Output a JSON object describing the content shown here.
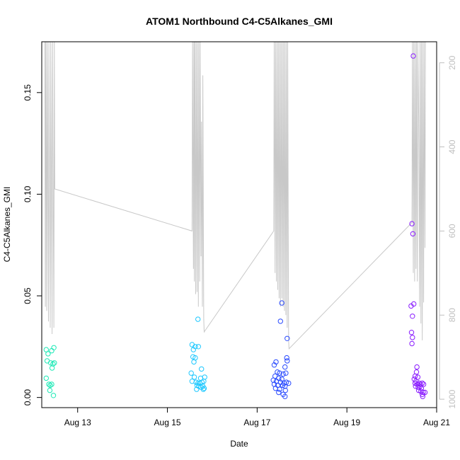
{
  "chart_data": {
    "type": "scatter",
    "title": "ATOM1 Northbound C4-C5Alkanes_GMI",
    "xlabel": "Date",
    "ylabel": "C4-C5Alkanes_GMI",
    "x_range_days": [
      12.2,
      21.0
    ],
    "y_range": [
      -0.005,
      0.175
    ],
    "x_ticks": [
      {
        "value": 13,
        "label": "Aug 13"
      },
      {
        "value": 15,
        "label": "Aug 15"
      },
      {
        "value": 17,
        "label": "Aug 17"
      },
      {
        "value": 19,
        "label": "Aug 19"
      },
      {
        "value": 21,
        "label": "Aug 21"
      }
    ],
    "y_ticks": [
      {
        "value": 0.0,
        "label": "0.00"
      },
      {
        "value": 0.05,
        "label": "0.05"
      },
      {
        "value": 0.1,
        "label": "0.10"
      },
      {
        "value": 0.15,
        "label": "0.15"
      }
    ],
    "right_axis": {
      "range": [
        1020,
        150
      ],
      "ticks": [
        {
          "value": 200,
          "label": "200"
        },
        {
          "value": 400,
          "label": "400"
        },
        {
          "value": 600,
          "label": "600"
        },
        {
          "value": 800,
          "label": "800"
        },
        {
          "value": 1000,
          "label": "1000"
        }
      ],
      "color": "#bfbfbf"
    },
    "colors": {
      "pressure_line": "#c8c8c8",
      "cyan_green": "#1de9b6",
      "sky": "#1ec8ff",
      "blue": "#2a4bff",
      "violet": "#8a1cff"
    },
    "points": [
      {
        "x": 12.3,
        "y": 0.0235,
        "c": "#1de9b6"
      },
      {
        "x": 12.34,
        "y": 0.0215,
        "c": "#1de9b6"
      },
      {
        "x": 12.42,
        "y": 0.023,
        "c": "#1de9b6"
      },
      {
        "x": 12.47,
        "y": 0.0245,
        "c": "#1de9b6"
      },
      {
        "x": 12.32,
        "y": 0.018,
        "c": "#1de9b6"
      },
      {
        "x": 12.4,
        "y": 0.017,
        "c": "#1de9b6"
      },
      {
        "x": 12.45,
        "y": 0.0165,
        "c": "#1de9b6"
      },
      {
        "x": 12.48,
        "y": 0.017,
        "c": "#1de9b6"
      },
      {
        "x": 12.43,
        "y": 0.0145,
        "c": "#1de9b6"
      },
      {
        "x": 12.3,
        "y": 0.0095,
        "c": "#1de9b6"
      },
      {
        "x": 12.36,
        "y": 0.0065,
        "c": "#1de9b6"
      },
      {
        "x": 12.39,
        "y": 0.006,
        "c": "#1de9b6"
      },
      {
        "x": 12.42,
        "y": 0.0065,
        "c": "#1de9b6"
      },
      {
        "x": 12.38,
        "y": 0.0035,
        "c": "#1de9b6"
      },
      {
        "x": 12.46,
        "y": 0.001,
        "c": "#1de9b6"
      },
      {
        "x": 15.68,
        "y": 0.0385,
        "c": "#1ec8ff"
      },
      {
        "x": 15.55,
        "y": 0.026,
        "c": "#1ec8ff"
      },
      {
        "x": 15.62,
        "y": 0.025,
        "c": "#1ec8ff"
      },
      {
        "x": 15.69,
        "y": 0.025,
        "c": "#1ec8ff"
      },
      {
        "x": 15.58,
        "y": 0.0235,
        "c": "#1ec8ff"
      },
      {
        "x": 15.57,
        "y": 0.02,
        "c": "#1ec8ff"
      },
      {
        "x": 15.62,
        "y": 0.0195,
        "c": "#1ec8ff"
      },
      {
        "x": 15.59,
        "y": 0.0175,
        "c": "#1ec8ff"
      },
      {
        "x": 15.76,
        "y": 0.014,
        "c": "#1ec8ff"
      },
      {
        "x": 15.53,
        "y": 0.012,
        "c": "#1ec8ff"
      },
      {
        "x": 15.6,
        "y": 0.01,
        "c": "#1ec8ff"
      },
      {
        "x": 15.74,
        "y": 0.0095,
        "c": "#1ec8ff"
      },
      {
        "x": 15.83,
        "y": 0.01,
        "c": "#1ec8ff"
      },
      {
        "x": 15.55,
        "y": 0.008,
        "c": "#1ec8ff"
      },
      {
        "x": 15.64,
        "y": 0.0075,
        "c": "#1ec8ff"
      },
      {
        "x": 15.68,
        "y": 0.007,
        "c": "#1ec8ff"
      },
      {
        "x": 15.72,
        "y": 0.007,
        "c": "#1ec8ff"
      },
      {
        "x": 15.77,
        "y": 0.0075,
        "c": "#1ec8ff"
      },
      {
        "x": 15.81,
        "y": 0.008,
        "c": "#1ec8ff"
      },
      {
        "x": 15.66,
        "y": 0.006,
        "c": "#1ec8ff"
      },
      {
        "x": 15.7,
        "y": 0.0055,
        "c": "#1ec8ff"
      },
      {
        "x": 15.75,
        "y": 0.005,
        "c": "#1ec8ff"
      },
      {
        "x": 15.79,
        "y": 0.0055,
        "c": "#1ec8ff"
      },
      {
        "x": 15.82,
        "y": 0.0045,
        "c": "#1ec8ff"
      },
      {
        "x": 15.65,
        "y": 0.004,
        "c": "#1ec8ff"
      },
      {
        "x": 15.8,
        "y": 0.004,
        "c": "#1ec8ff"
      },
      {
        "x": 17.55,
        "y": 0.0465,
        "c": "#2a4bff"
      },
      {
        "x": 17.52,
        "y": 0.0375,
        "c": "#2a4bff"
      },
      {
        "x": 17.67,
        "y": 0.029,
        "c": "#2a4bff"
      },
      {
        "x": 17.66,
        "y": 0.0195,
        "c": "#2a4bff"
      },
      {
        "x": 17.67,
        "y": 0.018,
        "c": "#2a4bff"
      },
      {
        "x": 17.42,
        "y": 0.0175,
        "c": "#2a4bff"
      },
      {
        "x": 17.38,
        "y": 0.016,
        "c": "#2a4bff"
      },
      {
        "x": 17.62,
        "y": 0.015,
        "c": "#2a4bff"
      },
      {
        "x": 17.45,
        "y": 0.0125,
        "c": "#2a4bff"
      },
      {
        "x": 17.5,
        "y": 0.012,
        "c": "#2a4bff"
      },
      {
        "x": 17.58,
        "y": 0.0115,
        "c": "#2a4bff"
      },
      {
        "x": 17.64,
        "y": 0.012,
        "c": "#2a4bff"
      },
      {
        "x": 17.4,
        "y": 0.0105,
        "c": "#2a4bff"
      },
      {
        "x": 17.48,
        "y": 0.0095,
        "c": "#2a4bff"
      },
      {
        "x": 17.55,
        "y": 0.009,
        "c": "#2a4bff"
      },
      {
        "x": 17.36,
        "y": 0.0085,
        "c": "#2a4bff"
      },
      {
        "x": 17.43,
        "y": 0.008,
        "c": "#2a4bff"
      },
      {
        "x": 17.52,
        "y": 0.0075,
        "c": "#2a4bff"
      },
      {
        "x": 17.6,
        "y": 0.007,
        "c": "#2a4bff"
      },
      {
        "x": 17.65,
        "y": 0.0075,
        "c": "#2a4bff"
      },
      {
        "x": 17.7,
        "y": 0.007,
        "c": "#2a4bff"
      },
      {
        "x": 17.38,
        "y": 0.0065,
        "c": "#2a4bff"
      },
      {
        "x": 17.46,
        "y": 0.006,
        "c": "#2a4bff"
      },
      {
        "x": 17.57,
        "y": 0.006,
        "c": "#2a4bff"
      },
      {
        "x": 17.62,
        "y": 0.0055,
        "c": "#2a4bff"
      },
      {
        "x": 17.41,
        "y": 0.0045,
        "c": "#2a4bff"
      },
      {
        "x": 17.5,
        "y": 0.004,
        "c": "#2a4bff"
      },
      {
        "x": 17.63,
        "y": 0.0035,
        "c": "#2a4bff"
      },
      {
        "x": 17.48,
        "y": 0.0025,
        "c": "#2a4bff"
      },
      {
        "x": 17.58,
        "y": 0.0015,
        "c": "#2a4bff"
      },
      {
        "x": 17.62,
        "y": 0.0005,
        "c": "#2a4bff"
      },
      {
        "x": 20.48,
        "y": 0.168,
        "c": "#8a1cff"
      },
      {
        "x": 20.45,
        "y": 0.0855,
        "c": "#8a1cff"
      },
      {
        "x": 20.47,
        "y": 0.0805,
        "c": "#8a1cff"
      },
      {
        "x": 20.49,
        "y": 0.046,
        "c": "#8a1cff"
      },
      {
        "x": 20.43,
        "y": 0.045,
        "c": "#8a1cff"
      },
      {
        "x": 20.46,
        "y": 0.04,
        "c": "#8a1cff"
      },
      {
        "x": 20.44,
        "y": 0.032,
        "c": "#8a1cff"
      },
      {
        "x": 20.46,
        "y": 0.0295,
        "c": "#8a1cff"
      },
      {
        "x": 20.45,
        "y": 0.0265,
        "c": "#8a1cff"
      },
      {
        "x": 20.56,
        "y": 0.015,
        "c": "#8a1cff"
      },
      {
        "x": 20.55,
        "y": 0.0125,
        "c": "#8a1cff"
      },
      {
        "x": 20.52,
        "y": 0.0105,
        "c": "#8a1cff"
      },
      {
        "x": 20.58,
        "y": 0.01,
        "c": "#8a1cff"
      },
      {
        "x": 20.5,
        "y": 0.009,
        "c": "#8a1cff"
      },
      {
        "x": 20.54,
        "y": 0.008,
        "c": "#8a1cff"
      },
      {
        "x": 20.52,
        "y": 0.007,
        "c": "#8a1cff"
      },
      {
        "x": 20.57,
        "y": 0.0065,
        "c": "#8a1cff"
      },
      {
        "x": 20.61,
        "y": 0.007,
        "c": "#8a1cff"
      },
      {
        "x": 20.64,
        "y": 0.0065,
        "c": "#8a1cff"
      },
      {
        "x": 20.68,
        "y": 0.007,
        "c": "#8a1cff"
      },
      {
        "x": 20.71,
        "y": 0.0065,
        "c": "#8a1cff"
      },
      {
        "x": 20.53,
        "y": 0.0055,
        "c": "#8a1cff"
      },
      {
        "x": 20.59,
        "y": 0.005,
        "c": "#8a1cff"
      },
      {
        "x": 20.63,
        "y": 0.0055,
        "c": "#8a1cff"
      },
      {
        "x": 20.66,
        "y": 0.0045,
        "c": "#8a1cff"
      },
      {
        "x": 20.6,
        "y": 0.0035,
        "c": "#8a1cff"
      },
      {
        "x": 20.65,
        "y": 0.003,
        "c": "#8a1cff"
      },
      {
        "x": 20.7,
        "y": 0.0025,
        "c": "#8a1cff"
      },
      {
        "x": 20.74,
        "y": 0.0025,
        "c": "#8a1cff"
      },
      {
        "x": 20.68,
        "y": 0.0015,
        "c": "#8a1cff"
      },
      {
        "x": 20.69,
        "y": 0.0005,
        "c": "#8a1cff"
      }
    ],
    "pressure_trace": [
      [
        12.27,
        150
      ],
      [
        12.28,
        780
      ],
      [
        12.29,
        150
      ],
      [
        12.31,
        790
      ],
      [
        12.32,
        150
      ],
      [
        12.35,
        815
      ],
      [
        12.36,
        150
      ],
      [
        12.39,
        830
      ],
      [
        12.4,
        150
      ],
      [
        12.43,
        845
      ],
      [
        12.44,
        150
      ],
      [
        12.47,
        830
      ],
      [
        12.48,
        150
      ],
      [
        12.49,
        500
      ],
      [
        15.55,
        600
      ],
      [
        15.56,
        150
      ],
      [
        15.58,
        690
      ],
      [
        15.59,
        150
      ],
      [
        15.6,
        720
      ],
      [
        15.61,
        150
      ],
      [
        15.63,
        750
      ],
      [
        15.64,
        150
      ],
      [
        15.66,
        745
      ],
      [
        15.67,
        150
      ],
      [
        15.69,
        780
      ],
      [
        15.7,
        150
      ],
      [
        15.72,
        720
      ],
      [
        15.73,
        150
      ],
      [
        15.75,
        660
      ],
      [
        15.76,
        340
      ],
      [
        15.78,
        780
      ],
      [
        15.79,
        230
      ],
      [
        15.81,
        810
      ],
      [
        15.82,
        840
      ],
      [
        17.37,
        600
      ],
      [
        17.38,
        150
      ],
      [
        17.4,
        700
      ],
      [
        17.41,
        150
      ],
      [
        17.43,
        720
      ],
      [
        17.44,
        150
      ],
      [
        17.46,
        740
      ],
      [
        17.47,
        150
      ],
      [
        17.49,
        760
      ],
      [
        17.5,
        150
      ],
      [
        17.52,
        780
      ],
      [
        17.53,
        150
      ],
      [
        17.55,
        760
      ],
      [
        17.56,
        150
      ],
      [
        17.58,
        780
      ],
      [
        17.59,
        150
      ],
      [
        17.61,
        790
      ],
      [
        17.62,
        150
      ],
      [
        17.64,
        800
      ],
      [
        17.65,
        150
      ],
      [
        17.67,
        830
      ],
      [
        17.68,
        150
      ],
      [
        17.7,
        860
      ],
      [
        17.71,
        880
      ],
      [
        20.45,
        580
      ],
      [
        20.46,
        150
      ],
      [
        20.48,
        700
      ],
      [
        20.49,
        150
      ],
      [
        20.51,
        720
      ],
      [
        20.52,
        150
      ],
      [
        20.54,
        690
      ],
      [
        20.55,
        150
      ],
      [
        20.57,
        720
      ],
      [
        20.58,
        150
      ],
      [
        20.6,
        330
      ],
      [
        20.62,
        780
      ],
      [
        20.63,
        150
      ],
      [
        20.65,
        820
      ],
      [
        20.66,
        150
      ],
      [
        20.68,
        860
      ],
      [
        20.69,
        150
      ],
      [
        20.71,
        770
      ],
      [
        20.72,
        150
      ],
      [
        20.74,
        640
      ],
      [
        20.75,
        150
      ]
    ]
  }
}
